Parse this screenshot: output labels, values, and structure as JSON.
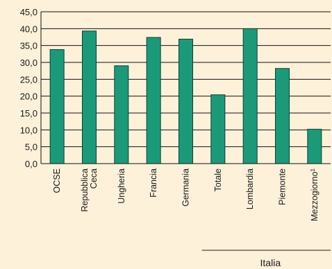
{
  "chart_data": {
    "type": "bar",
    "categories": [
      "OCSE",
      "Repubblica Ceca",
      "Ungheria",
      "Francia",
      "Germania",
      "Totale",
      "Lombardia",
      "Piemonte",
      "Mezzogiorno"
    ],
    "category_lines": [
      [
        "OCSE"
      ],
      [
        "Repubblica",
        "Ceca"
      ],
      [
        "Ungheria"
      ],
      [
        "Francia"
      ],
      [
        "Germania"
      ],
      [
        "Totale"
      ],
      [
        "Lombardia"
      ],
      [
        "Piemonte"
      ],
      [
        "Mezzogiorno"
      ]
    ],
    "category_superscripts": [
      "",
      "",
      "",
      "",
      "",
      "",
      "",
      "",
      "1"
    ],
    "values": [
      33.8,
      39.3,
      29.0,
      37.4,
      36.9,
      20.4,
      40.0,
      28.2,
      10.2
    ],
    "ylim": [
      0,
      45
    ],
    "yticks": [
      0,
      5,
      10,
      15,
      20,
      25,
      30,
      35,
      40,
      45
    ],
    "ytick_labels": [
      "0,0",
      "5,0",
      "10,0",
      "15,0",
      "20,0",
      "25,0",
      "30,0",
      "35,0",
      "40,0",
      "45,0"
    ],
    "grid": true,
    "legend": "none",
    "title": "",
    "xlabel": "",
    "ylabel": "",
    "group": {
      "label": "Italia",
      "from_index": 5,
      "to_index": 8
    },
    "colors": {
      "bar": "#1a9a78",
      "bar_stroke": "#0d3f33",
      "background": "#fdf1d9",
      "grid": "#111111"
    }
  }
}
